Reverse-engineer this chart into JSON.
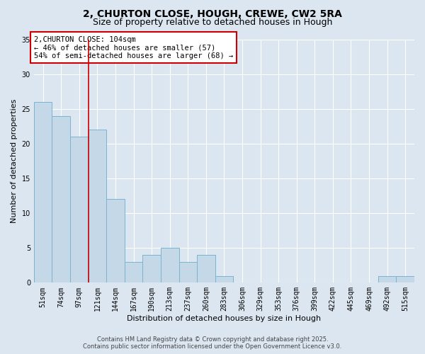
{
  "title1": "2, CHURTON CLOSE, HOUGH, CREWE, CW2 5RA",
  "title2": "Size of property relative to detached houses in Hough",
  "xlabel": "Distribution of detached houses by size in Hough",
  "ylabel": "Number of detached properties",
  "categories": [
    "51sqm",
    "74sqm",
    "97sqm",
    "121sqm",
    "144sqm",
    "167sqm",
    "190sqm",
    "213sqm",
    "237sqm",
    "260sqm",
    "283sqm",
    "306sqm",
    "329sqm",
    "353sqm",
    "376sqm",
    "399sqm",
    "422sqm",
    "445sqm",
    "469sqm",
    "492sqm",
    "515sqm"
  ],
  "values": [
    26,
    24,
    21,
    22,
    12,
    3,
    4,
    5,
    3,
    4,
    1,
    0,
    0,
    0,
    0,
    0,
    0,
    0,
    0,
    1,
    1
  ],
  "bar_color": "#c5d8e8",
  "bar_edge_color": "#7ab4d0",
  "vline_color": "#cc0000",
  "annotation_text": "2,CHURTON CLOSE: 104sqm\n← 46% of detached houses are smaller (57)\n54% of semi-detached houses are larger (68) →",
  "annotation_box_color": "#ffffff",
  "annotation_box_edge": "#cc0000",
  "ylim": [
    0,
    35
  ],
  "yticks": [
    0,
    5,
    10,
    15,
    20,
    25,
    30,
    35
  ],
  "background_color": "#dce6f0",
  "footer1": "Contains HM Land Registry data © Crown copyright and database right 2025.",
  "footer2": "Contains public sector information licensed under the Open Government Licence v3.0.",
  "title_fontsize": 10,
  "subtitle_fontsize": 9,
  "axis_label_fontsize": 8,
  "tick_fontsize": 7,
  "footer_fontsize": 6,
  "annotation_fontsize": 7.5
}
